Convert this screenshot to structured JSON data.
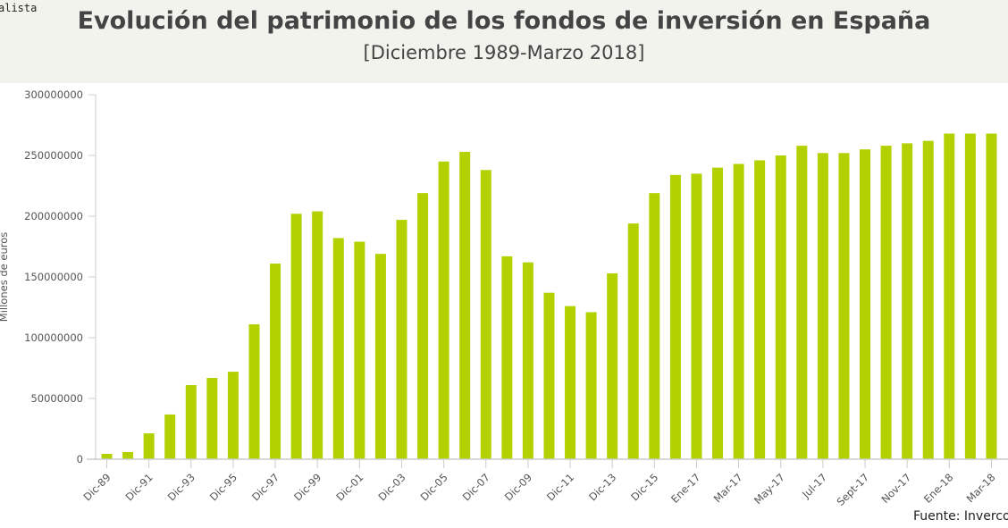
{
  "header": {
    "brand": "alista",
    "title": "Evolución del patrimonio de los fondos de inversión en España",
    "subtitle": "[Diciembre 1989-Marzo 2018]"
  },
  "source": "Fuente: Inverco",
  "chart_data": {
    "type": "bar",
    "title": "Evolución del patrimonio de los fondos de inversión en España",
    "subtitle": "[Diciembre 1989-Marzo 2018]",
    "ylabel": "Millones de euros",
    "xlabel": "",
    "ylim": [
      0,
      300000000
    ],
    "yticks": [
      0,
      50000000,
      100000000,
      150000000,
      200000000,
      250000000,
      300000000
    ],
    "color": "#b3d000",
    "categories": [
      "Dic-89",
      "Dic-90",
      "Dic-91",
      "Dic-92",
      "Dic-93",
      "Dic-94",
      "Dic-95",
      "Dic-96",
      "Dic-97",
      "Dic-98",
      "Dic-99",
      "Dic-00",
      "Dic-01",
      "Dic-02",
      "Dic-03",
      "Dic-04",
      "Dic-05",
      "Dic-06",
      "Dic-07",
      "Dic-08",
      "Dic-09",
      "Dic-10",
      "Dic-11",
      "Dic-12",
      "Dic-13",
      "Dic-14",
      "Dic-15",
      "Dic-16",
      "Ene-17",
      "Feb-17",
      "Mar-17",
      "Abr-17",
      "May-17",
      "Jun-17",
      "Jul-17",
      "Ago-17",
      "Sept-17",
      "Oct-17",
      "Nov-17",
      "Dic-17",
      "Ene-18",
      "Feb-18",
      "Mar-18"
    ],
    "tick_labels": [
      "Dic-89",
      "Dic-91",
      "Dic-93",
      "Dic-95",
      "Dic-97",
      "Dic-99",
      "Dic-01",
      "Dic-03",
      "Dic-05",
      "Dic-07",
      "Dic-09",
      "Dic-11",
      "Dic-13",
      "Dic-15",
      "Ene-17",
      "Mar-17",
      "May-17",
      "Jul-17",
      "Sept-17",
      "Nov-17",
      "Ene-18",
      "Mar-18"
    ],
    "values": [
      4400000,
      5900000,
      21300000,
      36800000,
      61000000,
      66900000,
      72000000,
      111000000,
      161000000,
      202000000,
      204000000,
      182000000,
      179000000,
      169000000,
      197000000,
      219000000,
      245000000,
      253000000,
      238000000,
      167000000,
      162000000,
      137000000,
      126000000,
      121000000,
      153000000,
      194000000,
      219000000,
      234000000,
      235000000,
      240000000,
      243000000,
      246000000,
      250000000,
      258000000,
      252000000,
      252000000,
      255000000,
      258000000,
      260000000,
      262000000,
      268000000,
      268000000,
      268000000
    ]
  }
}
